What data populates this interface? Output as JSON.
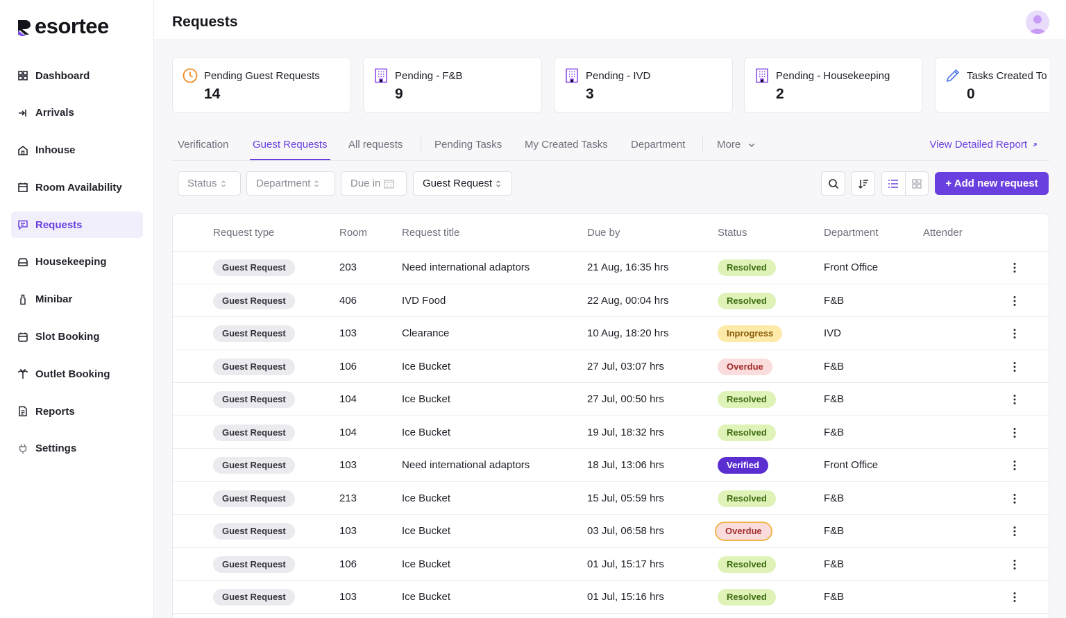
{
  "brand": {
    "name": "esortee"
  },
  "sidebar": {
    "items": [
      {
        "label": "Dashboard",
        "icon": "grid-icon"
      },
      {
        "label": "Arrivals",
        "icon": "login-arrow-icon"
      },
      {
        "label": "Inhouse",
        "icon": "home-icon"
      },
      {
        "label": "Room Availability",
        "icon": "calendar-icon"
      },
      {
        "label": "Requests",
        "icon": "message-icon",
        "active": true
      },
      {
        "label": "Housekeeping",
        "icon": "tray-icon"
      },
      {
        "label": "Minibar",
        "icon": "bottle-icon"
      },
      {
        "label": "Slot Booking",
        "icon": "calendar-slot-icon"
      },
      {
        "label": "Outlet Booking",
        "icon": "palm-tree-icon"
      },
      {
        "label": "Reports",
        "icon": "document-icon"
      },
      {
        "label": "Settings",
        "icon": "plug-icon"
      }
    ]
  },
  "header": {
    "title": "Requests"
  },
  "cards": [
    {
      "label": "Pending Guest Requests",
      "value": "14",
      "icon": "clock-icon"
    },
    {
      "label": "Pending - F&B",
      "value": "9",
      "icon": "building-icon"
    },
    {
      "label": "Pending - IVD",
      "value": "3",
      "icon": "building-icon"
    },
    {
      "label": "Pending - Housekeeping",
      "value": "2",
      "icon": "building-icon"
    },
    {
      "label": "Tasks Created To",
      "value": "0",
      "icon": "pencil-icon"
    }
  ],
  "tabs": [
    {
      "label": "Verification"
    },
    {
      "label": "Guest Requests",
      "active": true
    },
    {
      "label": "All requests"
    },
    {
      "label": "Pending Tasks"
    },
    {
      "label": "My Created Tasks"
    },
    {
      "label": "Department"
    },
    {
      "label": "More"
    }
  ],
  "report_link": "View Detailed Report",
  "filters": {
    "status": "Status",
    "department": "Department",
    "due_in": "Due in",
    "request_type": "Guest Request"
  },
  "add_button": "+ Add new request",
  "table": {
    "headers": [
      "Request type",
      "Room",
      "Request title",
      "Due by",
      "Status",
      "Department",
      "Attender"
    ],
    "rows": [
      {
        "type": "Guest Request",
        "room": "203",
        "title": "Need international adaptors",
        "due": "21 Aug, 16:35 hrs",
        "status": "Resolved",
        "status_kind": "resolved",
        "department": "Front Office"
      },
      {
        "type": "Guest Request",
        "room": "406",
        "title": "IVD Food",
        "due": "22 Aug, 00:04 hrs",
        "status": "Resolved",
        "status_kind": "resolved",
        "department": "F&B"
      },
      {
        "type": "Guest Request",
        "room": "103",
        "title": "Clearance",
        "due": "10 Aug, 18:20 hrs",
        "status": "Inprogress",
        "status_kind": "inprogress",
        "department": "IVD"
      },
      {
        "type": "Guest Request",
        "room": "106",
        "title": "Ice Bucket",
        "due": "27 Jul, 03:07 hrs",
        "status": "Overdue",
        "status_kind": "overdue",
        "department": "F&B"
      },
      {
        "type": "Guest Request",
        "room": "104",
        "title": "Ice Bucket",
        "due": "27 Jul, 00:50 hrs",
        "status": "Resolved",
        "status_kind": "resolved",
        "department": "F&B"
      },
      {
        "type": "Guest Request",
        "room": "104",
        "title": "Ice Bucket",
        "due": "19 Jul, 18:32 hrs",
        "status": "Resolved",
        "status_kind": "resolved",
        "department": "F&B"
      },
      {
        "type": "Guest Request",
        "room": "103",
        "title": "Need international adaptors",
        "due": "18 Jul, 13:06 hrs",
        "status": "Verified",
        "status_kind": "verified",
        "department": "Front Office"
      },
      {
        "type": "Guest Request",
        "room": "213",
        "title": "Ice Bucket",
        "due": "15 Jul, 05:59 hrs",
        "status": "Resolved",
        "status_kind": "resolved",
        "department": "F&B"
      },
      {
        "type": "Guest Request",
        "room": "103",
        "title": "Ice Bucket",
        "due": "03 Jul, 06:58 hrs",
        "status": "Overdue",
        "status_kind": "overdue-hl",
        "department": "F&B"
      },
      {
        "type": "Guest Request",
        "room": "106",
        "title": "Ice Bucket",
        "due": "01 Jul, 15:17 hrs",
        "status": "Resolved",
        "status_kind": "resolved",
        "department": "F&B"
      },
      {
        "type": "Guest Request",
        "room": "103",
        "title": "Ice Bucket",
        "due": "01 Jul, 15:16 hrs",
        "status": "Resolved",
        "status_kind": "resolved",
        "department": "F&B"
      }
    ]
  },
  "colors": {
    "accent": "#6a3fe0",
    "resolved": "#dff3b9",
    "inprogress": "#fde9a8",
    "overdue": "#fbdcdc",
    "verified": "#5a2ed1"
  }
}
